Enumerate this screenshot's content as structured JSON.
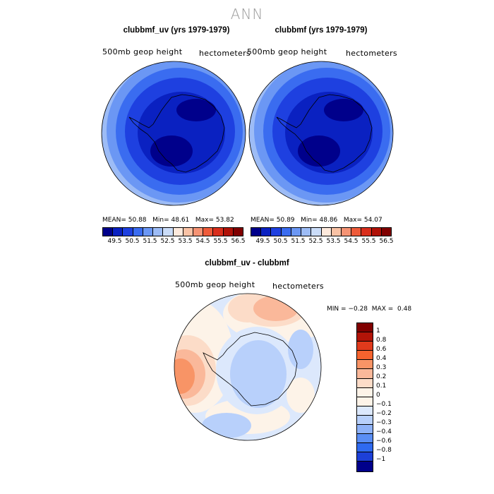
{
  "main_title": "ANN",
  "colors": {
    "abs_scale": [
      "#00008b",
      "#0a21c1",
      "#1e40e0",
      "#3a6cf0",
      "#6b97f4",
      "#9dbcf6",
      "#cadcf8",
      "#fde9dc",
      "#f9c2a5",
      "#f59374",
      "#ee5b3a",
      "#d92e1c",
      "#b01208",
      "#800000"
    ],
    "diff_scale": [
      "#800000",
      "#b21408",
      "#e03a1c",
      "#f5632e",
      "#f89466",
      "#fab89a",
      "#fcdcc8",
      "#fdf3e8",
      "#dce8fc",
      "#b8d0fb",
      "#8eb2f8",
      "#5a8ef5",
      "#2f6af0",
      "#1d40d8",
      "#00008b"
    ]
  },
  "panels": [
    {
      "title": "clubbmf_uv (yrs 1979-1979)",
      "variable": "500mb geop height",
      "units": "hectometers",
      "mean_label": "MEAN=",
      "mean_value": "50.88",
      "min_label": "Min=",
      "min_value": "48.61",
      "max_label": "Max=",
      "max_value": "53.82",
      "colorbar_labels": [
        "49.5",
        "50.5",
        "51.5",
        "52.5",
        "53.5",
        "54.5",
        "55.5",
        "56.5"
      ]
    },
    {
      "title": "clubbmf (yrs 1979-1979)",
      "variable": "500mb geop height",
      "units": "hectometers",
      "mean_label": "MEAN=",
      "mean_value": "50.89",
      "min_label": "Min=",
      "min_value": "48.86",
      "max_label": "Max=",
      "max_value": "54.07",
      "colorbar_labels": [
        "49.5",
        "50.5",
        "51.5",
        "52.5",
        "53.5",
        "54.5",
        "55.5",
        "56.5"
      ]
    }
  ],
  "difference": {
    "title": "clubbmf_uv - clubbmf",
    "variable": "500mb geop height",
    "units": "hectometers",
    "min_label": "MIN =",
    "min_value": "−0.28",
    "max_label": "MAX =",
    "max_value": "0.48",
    "colorbar_labels": [
      "1",
      "0.8",
      "0.6",
      "0.4",
      "0.3",
      "0.2",
      "0.1",
      "0",
      "−0.1",
      "−0.2",
      "−0.3",
      "−0.4",
      "−0.6",
      "−0.8",
      "−1"
    ]
  }
}
